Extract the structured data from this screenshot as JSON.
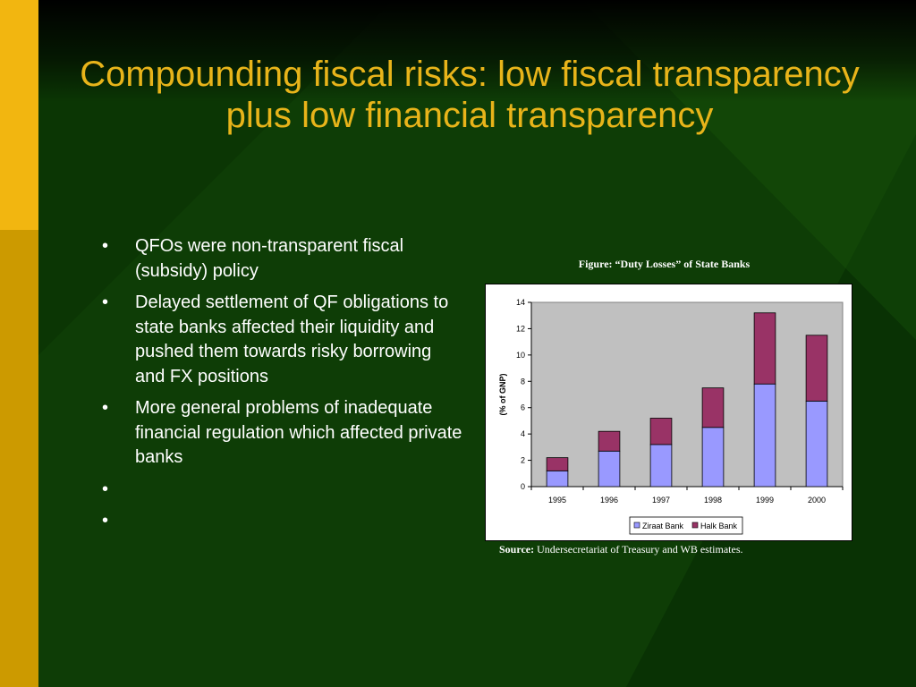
{
  "slide": {
    "title": "Compounding fiscal risks: low fiscal transparency plus low financial transparency",
    "bullet_symbol": "•",
    "bullets": [
      "QFOs were non-transparent fiscal (subsidy) policy",
      "Delayed settlement of QF obligations to state banks affected their liquidity and pushed them towards risky borrowing and FX positions",
      "More general problems of inadequate financial regulation which affected private banks",
      "",
      ""
    ]
  },
  "figure": {
    "caption": "Figure: “Duty Losses” of State Banks",
    "source_label": "Source:",
    "source_text": "Undersecretariat of Treasury and WB estimates."
  },
  "colors": {
    "title": "#E8B41A",
    "background": "#0E3D06",
    "ziraat": "#9999FF",
    "halk": "#993366",
    "plot_area": "#C0C0C0"
  },
  "chart_data": {
    "type": "bar",
    "stacked": true,
    "categories": [
      "1995",
      "1996",
      "1997",
      "1998",
      "1999",
      "2000"
    ],
    "series": [
      {
        "name": "Ziraat Bank",
        "values": [
          1.2,
          2.7,
          3.2,
          4.5,
          7.8,
          6.5
        ]
      },
      {
        "name": "Halk Bank",
        "values": [
          1.0,
          1.5,
          2.0,
          3.0,
          5.4,
          5.0
        ]
      }
    ],
    "ylabel": "(% of GNP)",
    "ylim": [
      0,
      14
    ],
    "yticks": [
      0,
      2,
      4,
      6,
      8,
      10,
      12,
      14
    ],
    "grid": false,
    "legend": "bottom"
  }
}
